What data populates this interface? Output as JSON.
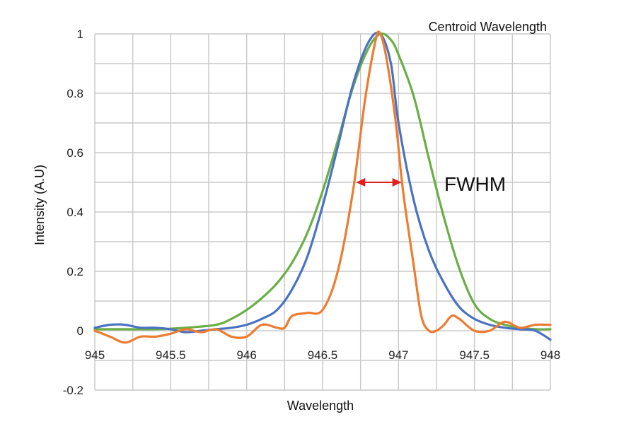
{
  "chart_data": {
    "type": "line",
    "title": "",
    "xlabel": "Wavelength",
    "ylabel": "Intensity (A.U)",
    "xlim": [
      945,
      948
    ],
    "ylim": [
      -0.2,
      1
    ],
    "grid": true,
    "x_ticks": [
      945,
      945.5,
      946,
      946.5,
      947,
      947.5,
      948
    ],
    "x_tick_labels": [
      "945",
      "945.5",
      "946",
      "946.5",
      "947",
      "947.5",
      "948"
    ],
    "y_ticks": [
      1,
      0.8,
      0.6,
      0.4,
      0.2,
      0,
      -0.2
    ],
    "y_tick_labels": [
      "1",
      "0.8",
      "0.6",
      "0.4",
      "0.2",
      "0",
      "-0.2"
    ],
    "annotations": {
      "corner_note": "Centroid Wavelength",
      "fwhm_label": "FWHM",
      "fwhm_arrow": {
        "x_start": 946.72,
        "x_end": 947.02,
        "y": 0.5,
        "color": "#e02020"
      }
    },
    "series": [
      {
        "color": "#4a72c2",
        "points": [
          [
            945.0,
            0.01
          ],
          [
            945.1,
            0.02
          ],
          [
            945.2,
            0.02
          ],
          [
            945.3,
            0.01
          ],
          [
            945.4,
            0.01
          ],
          [
            945.5,
            0.005
          ],
          [
            945.6,
            -0.005
          ],
          [
            945.7,
            0.0
          ],
          [
            945.8,
            0.005
          ],
          [
            945.9,
            0.01
          ],
          [
            946.0,
            0.02
          ],
          [
            946.1,
            0.04
          ],
          [
            946.2,
            0.07
          ],
          [
            946.3,
            0.14
          ],
          [
            946.4,
            0.25
          ],
          [
            946.5,
            0.42
          ],
          [
            946.6,
            0.62
          ],
          [
            946.7,
            0.83
          ],
          [
            946.8,
            0.97
          ],
          [
            946.88,
            1.0
          ],
          [
            946.95,
            0.9
          ],
          [
            947.0,
            0.7
          ],
          [
            947.1,
            0.44
          ],
          [
            947.2,
            0.27
          ],
          [
            947.3,
            0.16
          ],
          [
            947.4,
            0.08
          ],
          [
            947.5,
            0.04
          ],
          [
            947.6,
            0.02
          ],
          [
            947.7,
            0.01
          ],
          [
            947.8,
            0.005
          ],
          [
            947.9,
            0.0
          ],
          [
            948.0,
            -0.03
          ]
        ]
      },
      {
        "color": "#6aae45",
        "points": [
          [
            945.0,
            0.005
          ],
          [
            945.2,
            0.005
          ],
          [
            945.4,
            0.005
          ],
          [
            945.6,
            0.01
          ],
          [
            945.8,
            0.02
          ],
          [
            945.9,
            0.04
          ],
          [
            946.0,
            0.07
          ],
          [
            946.1,
            0.11
          ],
          [
            946.2,
            0.16
          ],
          [
            946.3,
            0.23
          ],
          [
            946.4,
            0.33
          ],
          [
            946.5,
            0.47
          ],
          [
            946.6,
            0.64
          ],
          [
            946.7,
            0.82
          ],
          [
            946.8,
            0.95
          ],
          [
            946.88,
            1.0
          ],
          [
            946.95,
            0.98
          ],
          [
            947.0,
            0.93
          ],
          [
            947.1,
            0.79
          ],
          [
            947.2,
            0.58
          ],
          [
            947.3,
            0.38
          ],
          [
            947.4,
            0.21
          ],
          [
            947.5,
            0.09
          ],
          [
            947.6,
            0.04
          ],
          [
            947.7,
            0.02
          ],
          [
            947.8,
            0.01
          ],
          [
            947.9,
            0.005
          ],
          [
            948.0,
            0.005
          ]
        ]
      },
      {
        "color": "#ec7c30",
        "points": [
          [
            945.0,
            0.0
          ],
          [
            945.1,
            -0.02
          ],
          [
            945.2,
            -0.04
          ],
          [
            945.3,
            -0.02
          ],
          [
            945.4,
            -0.02
          ],
          [
            945.5,
            -0.01
          ],
          [
            945.6,
            0.005
          ],
          [
            945.7,
            -0.005
          ],
          [
            945.8,
            0.005
          ],
          [
            945.9,
            -0.02
          ],
          [
            946.0,
            -0.02
          ],
          [
            946.1,
            0.02
          ],
          [
            946.2,
            0.01
          ],
          [
            946.25,
            0.01
          ],
          [
            946.3,
            0.05
          ],
          [
            946.4,
            0.06
          ],
          [
            946.5,
            0.07
          ],
          [
            946.6,
            0.2
          ],
          [
            946.7,
            0.47
          ],
          [
            946.78,
            0.78
          ],
          [
            946.85,
            0.98
          ],
          [
            946.88,
            1.0
          ],
          [
            946.92,
            0.92
          ],
          [
            946.98,
            0.71
          ],
          [
            947.03,
            0.47
          ],
          [
            947.1,
            0.22
          ],
          [
            947.15,
            0.05
          ],
          [
            947.2,
            0.0
          ],
          [
            947.25,
            0.0
          ],
          [
            947.3,
            0.02
          ],
          [
            947.35,
            0.05
          ],
          [
            947.4,
            0.04
          ],
          [
            947.5,
            0.0
          ],
          [
            947.6,
            0.0
          ],
          [
            947.7,
            0.03
          ],
          [
            947.8,
            0.01
          ],
          [
            947.9,
            0.02
          ],
          [
            948.0,
            0.02
          ]
        ]
      }
    ]
  }
}
